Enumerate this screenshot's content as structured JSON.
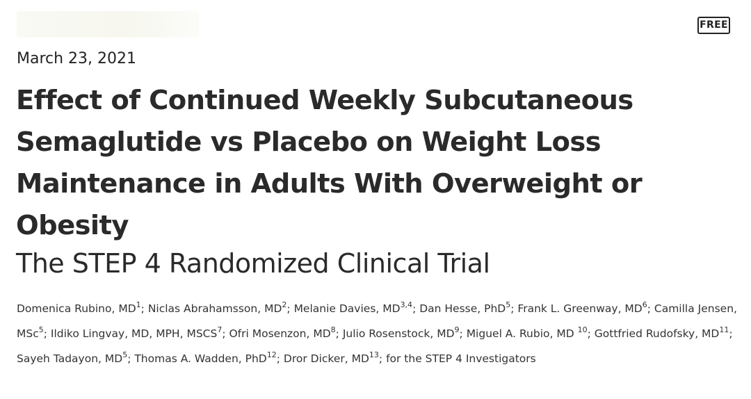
{
  "badge": {
    "label": "FREE"
  },
  "article": {
    "date": "March 23, 2021",
    "title": "Effect of Continued Weekly Subcutaneous Semaglutide vs Placebo on Weight Loss Maintenance in Adults With Overweight or Obesity",
    "subtitle": "The STEP 4 Randomized Clinical Trial"
  },
  "authors": [
    {
      "name": "Domenica Rubino, MD",
      "aff": "1",
      "sep": "; "
    },
    {
      "name": "Niclas Abrahamsson, MD",
      "aff": "2",
      "sep": "; "
    },
    {
      "name": "Melanie Davies, MD",
      "aff": "3,4",
      "sep": "; "
    },
    {
      "name": "Dan Hesse, PhD",
      "aff": "5",
      "sep": "; "
    },
    {
      "name": "Frank L. Greenway, MD",
      "aff": "6",
      "sep": "; "
    },
    {
      "name": "Camilla Jensen, MSc",
      "aff": "5",
      "sep": "; "
    },
    {
      "name": "Ildiko Lingvay, MD, MPH, MSCS",
      "aff": "7",
      "sep": "; "
    },
    {
      "name": "Ofri Mosenzon, MD",
      "aff": "8",
      "sep": "; "
    },
    {
      "name": "Julio Rosenstock, MD",
      "aff": "9",
      "sep": "; "
    },
    {
      "name": "Miguel A. Rubio, MD ",
      "aff": "10",
      "sep": "; "
    },
    {
      "name": "Gottfried Rudofsky, MD",
      "aff": "11",
      "sep": "; "
    },
    {
      "name": "Sayeh Tadayon, MD",
      "aff": "5",
      "sep": "; "
    },
    {
      "name": "Thomas A. Wadden, PhD",
      "aff": "12",
      "sep": "; "
    },
    {
      "name": "Dror Dicker, MD",
      "aff": "13",
      "sep": "; "
    },
    {
      "name": "for the STEP 4 Investigators",
      "aff": "",
      "sep": ""
    }
  ]
}
